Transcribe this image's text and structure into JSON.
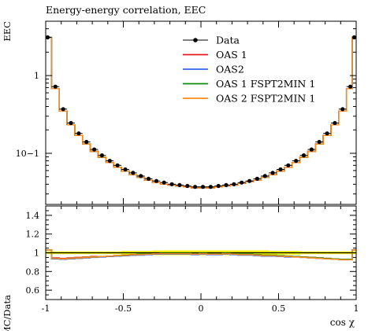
{
  "chart_data": [
    {
      "type": "line",
      "title": "Energy-energy correlation, EEC",
      "ylabel": "EEC",
      "yscale": "log",
      "xlim": [
        -1,
        1
      ],
      "ylim": [
        0.022,
        5
      ],
      "yticks": [
        {
          "value": 1,
          "label": "1"
        },
        {
          "value": 0.1,
          "label": "10−1"
        }
      ],
      "legend": {
        "position": "top-right",
        "entries": [
          "Data",
          "OAS 1",
          "OAS2",
          "OAS 1 FSPT2MIN 1",
          "OAS 2 FSPT2MIN 1"
        ]
      },
      "x": [
        -0.9875,
        -0.9375,
        -0.8875,
        -0.8375,
        -0.7875,
        -0.7375,
        -0.6875,
        -0.6375,
        -0.5875,
        -0.5375,
        -0.4875,
        -0.4375,
        -0.3875,
        -0.3375,
        -0.2875,
        -0.2375,
        -0.1875,
        -0.1375,
        -0.0875,
        -0.0375,
        0.0125,
        0.0625,
        0.1125,
        0.1625,
        0.2125,
        0.2625,
        0.3125,
        0.3625,
        0.4125,
        0.4625,
        0.5125,
        0.5625,
        0.6125,
        0.6625,
        0.7125,
        0.7625,
        0.8125,
        0.8625,
        0.9125,
        0.9625,
        0.9875
      ],
      "series": [
        {
          "name": "Data",
          "color": "#000000",
          "style": "points",
          "values": [
            3.1,
            0.72,
            0.37,
            0.245,
            0.18,
            0.14,
            0.112,
            0.094,
            0.08,
            0.07,
            0.062,
            0.056,
            0.051,
            0.047,
            0.044,
            0.042,
            0.04,
            0.039,
            0.038,
            0.037,
            0.037,
            0.037,
            0.038,
            0.039,
            0.04,
            0.042,
            0.044,
            0.047,
            0.051,
            0.056,
            0.062,
            0.07,
            0.08,
            0.094,
            0.112,
            0.14,
            0.18,
            0.245,
            0.37,
            0.72,
            3.1
          ]
        },
        {
          "name": "OAS 1",
          "color": "#e41a1c",
          "style": "step",
          "values": [
            3.1,
            0.68,
            0.35,
            0.232,
            0.17,
            0.132,
            0.106,
            0.089,
            0.076,
            0.066,
            0.059,
            0.053,
            0.049,
            0.045,
            0.042,
            0.04,
            0.039,
            0.038,
            0.037,
            0.036,
            0.036,
            0.036,
            0.037,
            0.038,
            0.039,
            0.041,
            0.043,
            0.045,
            0.049,
            0.053,
            0.059,
            0.066,
            0.076,
            0.089,
            0.106,
            0.132,
            0.17,
            0.232,
            0.35,
            0.68,
            3.1
          ]
        },
        {
          "name": "OAS2",
          "color": "#3366ee",
          "style": "step",
          "values": [
            3.1,
            0.68,
            0.35,
            0.232,
            0.17,
            0.132,
            0.106,
            0.089,
            0.076,
            0.066,
            0.059,
            0.053,
            0.049,
            0.045,
            0.042,
            0.04,
            0.039,
            0.038,
            0.037,
            0.036,
            0.036,
            0.036,
            0.037,
            0.038,
            0.039,
            0.041,
            0.043,
            0.045,
            0.049,
            0.053,
            0.059,
            0.066,
            0.076,
            0.089,
            0.106,
            0.132,
            0.17,
            0.232,
            0.35,
            0.68,
            3.1
          ]
        },
        {
          "name": "OAS 1 FSPT2MIN 1",
          "color": "#118811",
          "style": "step",
          "values": [
            3.1,
            0.68,
            0.35,
            0.232,
            0.17,
            0.132,
            0.106,
            0.089,
            0.076,
            0.066,
            0.059,
            0.053,
            0.049,
            0.045,
            0.042,
            0.04,
            0.039,
            0.038,
            0.037,
            0.036,
            0.036,
            0.036,
            0.037,
            0.038,
            0.039,
            0.041,
            0.043,
            0.045,
            0.049,
            0.053,
            0.059,
            0.066,
            0.076,
            0.089,
            0.106,
            0.132,
            0.17,
            0.232,
            0.35,
            0.68,
            3.1
          ]
        },
        {
          "name": "OAS 2 FSPT2MIN 1",
          "color": "#ff8c1a",
          "style": "step",
          "values": [
            3.1,
            0.68,
            0.35,
            0.232,
            0.17,
            0.132,
            0.106,
            0.089,
            0.076,
            0.066,
            0.059,
            0.053,
            0.049,
            0.045,
            0.042,
            0.04,
            0.039,
            0.038,
            0.037,
            0.036,
            0.036,
            0.036,
            0.037,
            0.038,
            0.039,
            0.041,
            0.043,
            0.045,
            0.049,
            0.053,
            0.059,
            0.066,
            0.076,
            0.089,
            0.106,
            0.132,
            0.17,
            0.232,
            0.35,
            0.68,
            3.1
          ]
        }
      ]
    },
    {
      "type": "line",
      "ylabel": "MC/Data",
      "xlabel": "cos χ",
      "xlim": [
        -1,
        1
      ],
      "ylim": [
        0.5,
        1.5
      ],
      "xticks": [
        {
          "value": -1,
          "label": "-1"
        },
        {
          "value": -0.5,
          "label": "-0.5"
        },
        {
          "value": 0,
          "label": "0"
        },
        {
          "value": 0.5,
          "label": "0.5"
        },
        {
          "value": 1,
          "label": "1"
        }
      ],
      "yticks": [
        {
          "value": 0.6,
          "label": "0.6"
        },
        {
          "value": 0.8,
          "label": "0.8"
        },
        {
          "value": 1.0,
          "label": "1"
        },
        {
          "value": 1.2,
          "label": "1.2"
        },
        {
          "value": 1.4,
          "label": "1.4"
        }
      ],
      "band": {
        "color": "#f2f200",
        "low": [
          0.985,
          0.985,
          0.985,
          0.985,
          0.985,
          0.985,
          0.985,
          0.985,
          0.985,
          0.985,
          0.98,
          0.98,
          0.98,
          0.98,
          0.975,
          0.975,
          0.975,
          0.975,
          0.975,
          0.975,
          0.975,
          0.975,
          0.975,
          0.975,
          0.975,
          0.975,
          0.975,
          0.975,
          0.975,
          0.98,
          0.98,
          0.98,
          0.98,
          0.985,
          0.985,
          0.985,
          0.985,
          0.985,
          0.985,
          0.985,
          0.985
        ],
        "high": [
          1.015,
          1.015,
          1.015,
          1.015,
          1.015,
          1.015,
          1.015,
          1.015,
          1.015,
          1.015,
          1.02,
          1.02,
          1.02,
          1.02,
          1.025,
          1.025,
          1.025,
          1.025,
          1.025,
          1.025,
          1.025,
          1.025,
          1.025,
          1.025,
          1.025,
          1.025,
          1.025,
          1.025,
          1.025,
          1.02,
          1.02,
          1.02,
          1.02,
          1.015,
          1.015,
          1.015,
          1.015,
          1.015,
          1.015,
          1.015,
          1.015
        ]
      },
      "series": [
        {
          "name": "Data",
          "color": "#000000",
          "style": "flat",
          "values": [
            1,
            1,
            1,
            1,
            1,
            1,
            1,
            1,
            1,
            1,
            1,
            1,
            1,
            1,
            1,
            1,
            1,
            1,
            1,
            1,
            1,
            1,
            1,
            1,
            1,
            1,
            1,
            1,
            1,
            1,
            1,
            1,
            1,
            1,
            1,
            1,
            1,
            1,
            1,
            1,
            1
          ]
        },
        {
          "name": "OAS 1",
          "color": "#e41a1c",
          "style": "step",
          "values": [
            1.03,
            0.945,
            0.94,
            0.945,
            0.95,
            0.955,
            0.96,
            0.96,
            0.965,
            0.97,
            0.97,
            0.975,
            0.98,
            0.985,
            0.985,
            0.99,
            0.99,
            0.99,
            0.99,
            0.985,
            0.99,
            0.985,
            0.985,
            0.99,
            0.985,
            0.98,
            0.98,
            0.975,
            0.97,
            0.97,
            0.965,
            0.96,
            0.96,
            0.955,
            0.95,
            0.945,
            0.94,
            0.935,
            0.93,
            0.93,
            1.03
          ]
        },
        {
          "name": "OAS2",
          "color": "#3366ee",
          "style": "step",
          "values": [
            1.03,
            0.935,
            0.93,
            0.935,
            0.94,
            0.945,
            0.95,
            0.955,
            0.96,
            0.965,
            0.97,
            0.975,
            0.975,
            0.98,
            0.985,
            0.985,
            0.985,
            0.985,
            0.985,
            0.98,
            0.985,
            0.98,
            0.98,
            0.985,
            0.98,
            0.975,
            0.975,
            0.97,
            0.965,
            0.965,
            0.96,
            0.955,
            0.955,
            0.95,
            0.945,
            0.94,
            0.935,
            0.93,
            0.925,
            0.925,
            1.03
          ]
        },
        {
          "name": "OAS 1 FSPT2MIN 1",
          "color": "#118811",
          "style": "step",
          "values": [
            1.03,
            0.94,
            0.935,
            0.94,
            0.945,
            0.95,
            0.955,
            0.96,
            0.965,
            0.97,
            0.975,
            0.98,
            0.985,
            0.99,
            0.99,
            0.995,
            0.995,
            0.995,
            0.995,
            0.99,
            0.995,
            0.99,
            0.99,
            0.995,
            0.99,
            0.985,
            0.985,
            0.98,
            0.975,
            0.975,
            0.97,
            0.965,
            0.96,
            0.955,
            0.95,
            0.945,
            0.94,
            0.935,
            0.93,
            0.93,
            1.03
          ]
        },
        {
          "name": "OAS 2 FSPT2MIN 1",
          "color": "#ff8c1a",
          "style": "step",
          "values": [
            1.03,
            0.94,
            0.935,
            0.94,
            0.945,
            0.95,
            0.955,
            0.96,
            0.965,
            0.97,
            0.975,
            0.98,
            0.98,
            0.985,
            0.99,
            0.99,
            0.99,
            0.99,
            0.99,
            0.985,
            0.99,
            0.985,
            0.985,
            0.99,
            0.985,
            0.98,
            0.98,
            0.975,
            0.97,
            0.97,
            0.965,
            0.96,
            0.955,
            0.95,
            0.945,
            0.94,
            0.935,
            0.93,
            0.925,
            0.925,
            1.03
          ]
        }
      ]
    }
  ]
}
